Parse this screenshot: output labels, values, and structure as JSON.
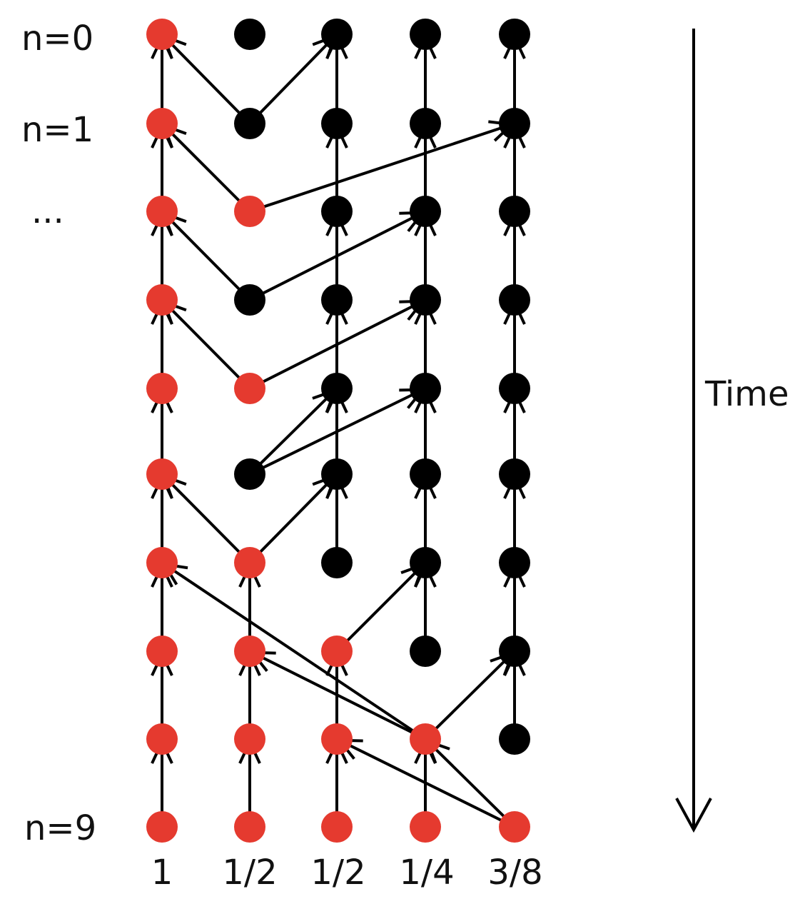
{
  "row_labels": [
    "n=0",
    "n=1",
    "...",
    "n=9"
  ],
  "column_labels": [
    "1",
    "1/2",
    "1/2",
    "1/4",
    "3/8"
  ],
  "time_label": "Time",
  "colors": {
    "red": "#e53a2f",
    "black": "#000000"
  },
  "red_nodes_by_row": [
    [
      0
    ],
    [
      0
    ],
    [
      0,
      1
    ],
    [
      0
    ],
    [
      0,
      1
    ],
    [
      0
    ],
    [
      0,
      1
    ],
    [
      0,
      1,
      2
    ],
    [
      0,
      1,
      2,
      3
    ],
    [
      0,
      1,
      2,
      3,
      4
    ]
  ]
}
